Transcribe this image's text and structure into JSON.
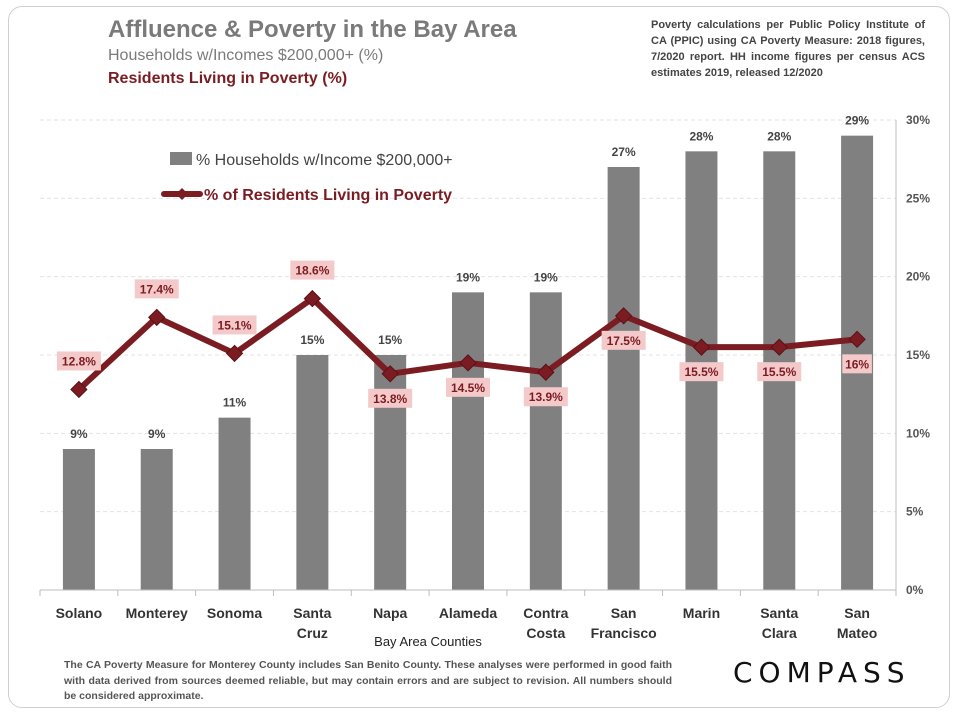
{
  "header": {
    "title": "Affluence & Poverty in the Bay Area",
    "subtitle_income": "Households w/Incomes $200,000+ (%)",
    "subtitle_poverty": "Residents Living in Poverty (%)",
    "note": "Poverty calculations per Public Policy Institute of CA (PPIC) using CA Poverty Measure: 2018 figures, 7/2020 report. HH income figures per census ACS estimates 2019, released 12/2020"
  },
  "footer": {
    "disclaimer": "The CA Poverty Measure for Monterey County includes San Benito County. These analyses were performed in good faith with data derived from sources deemed reliable, but may contain errors and are subject to revision.  All numbers should be considered approximate.",
    "logo": "COMPASS"
  },
  "chart_data": {
    "type": "bar",
    "xlabel": "Bay Area Counties",
    "ylabel": "",
    "ylim": [
      0,
      30
    ],
    "yticks": [
      "0%",
      "5%",
      "10%",
      "15%",
      "20%",
      "25%",
      "30%"
    ],
    "y_axis_side": "right",
    "grid": true,
    "legend_position": "top-left",
    "categories": [
      [
        "Solano"
      ],
      [
        "Monterey"
      ],
      [
        "Sonoma"
      ],
      [
        "Santa",
        "Cruz"
      ],
      [
        "Napa"
      ],
      [
        "Alameda"
      ],
      [
        "Contra",
        "Costa"
      ],
      [
        "San",
        "Francisco"
      ],
      [
        "Marin"
      ],
      [
        "Santa",
        "Clara"
      ],
      [
        "San",
        "Mateo"
      ]
    ],
    "series": [
      {
        "name": "% Households w/Income $200,000+",
        "type": "bar",
        "color": "#808080",
        "values": [
          9,
          9,
          11,
          15,
          15,
          19,
          19,
          27,
          28,
          28,
          29
        ],
        "labels": [
          "9%",
          "9%",
          "11%",
          "15%",
          "15%",
          "19%",
          "19%",
          "27%",
          "28%",
          "28%",
          "29%"
        ]
      },
      {
        "name": "% of Residents Living in Poverty",
        "type": "line",
        "color": "#7b1c22",
        "values": [
          12.8,
          17.4,
          15.1,
          18.6,
          13.8,
          14.5,
          13.9,
          17.5,
          15.5,
          15.5,
          16
        ],
        "labels": [
          "12.8%",
          "17.4%",
          "15.1%",
          "18.6%",
          "13.8%",
          "14.5%",
          "13.9%",
          "17.5%",
          "15.5%",
          "15.5%",
          "16%"
        ]
      }
    ]
  }
}
